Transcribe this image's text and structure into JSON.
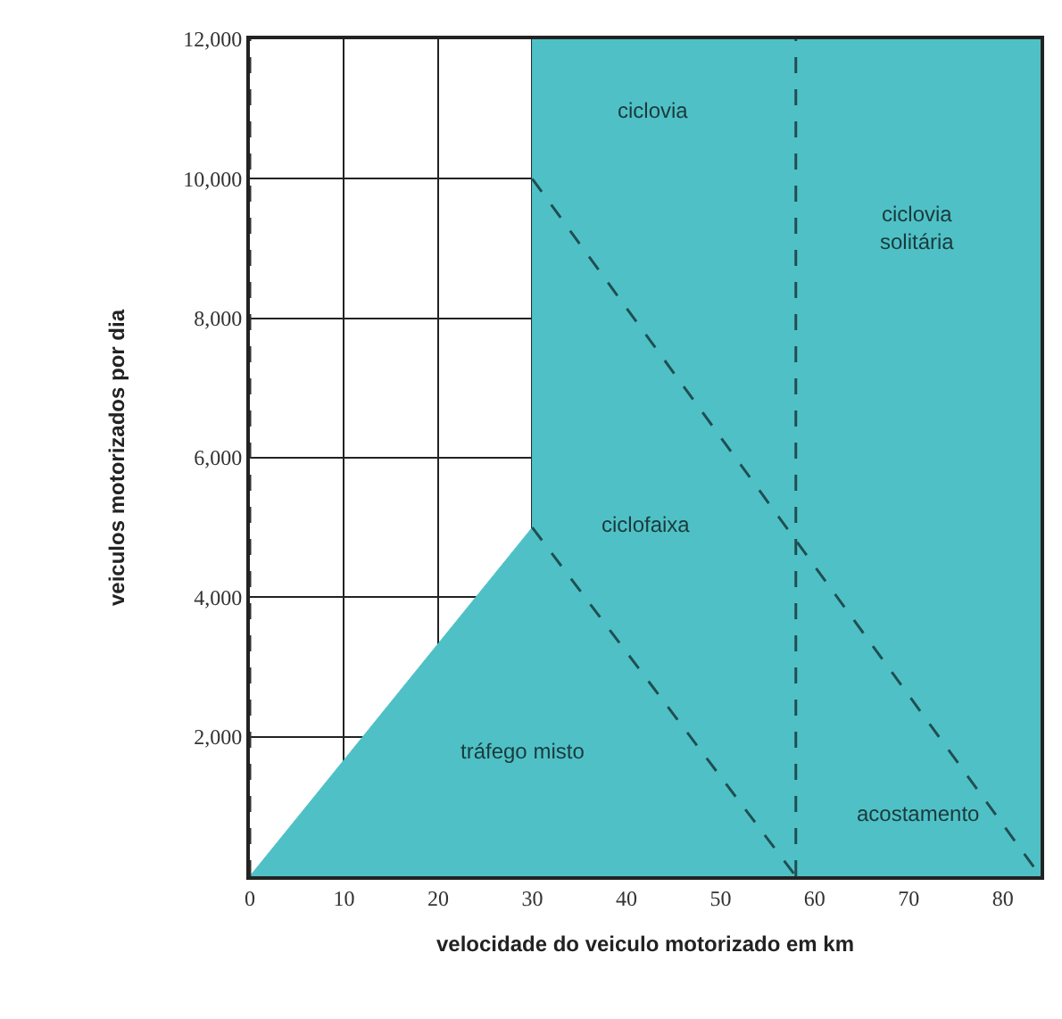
{
  "chart_data": {
    "type": "area",
    "xlabel": "velocidade do veiculo motorizado em km",
    "ylabel": "veiculos motorizados por dia",
    "xlim": [
      0,
      84
    ],
    "ylim": [
      0,
      12000
    ],
    "xticks": [
      0,
      10,
      20,
      30,
      40,
      50,
      60,
      70,
      80
    ],
    "yticks": [
      {
        "value": 2000,
        "label": "2,000"
      },
      {
        "value": 4000,
        "label": "4,000"
      },
      {
        "value": 6000,
        "label": "6,000"
      },
      {
        "value": 8000,
        "label": "8,000"
      },
      {
        "value": 10000,
        "label": "10,000"
      },
      {
        "value": 12000,
        "label": "12,000"
      }
    ],
    "grid": true,
    "series": [
      {
        "color": "#4fc1c6",
        "x": [
          0,
          30,
          30,
          84
        ],
        "values": [
          0,
          5000,
          12000,
          12000
        ]
      },
      {
        "type": "line",
        "color": "#1f4f52",
        "line_style": "dashed",
        "x": [
          30,
          58
        ],
        "values": [
          5000,
          0
        ]
      },
      {
        "type": "line",
        "color": "#1f4f52",
        "line_style": "dashed",
        "x": [
          30,
          84
        ],
        "values": [
          10000,
          0
        ]
      }
    ],
    "ref_lines": [
      {
        "axis": "x",
        "value": 58,
        "color": "#1f4f52",
        "line_style": "dashed"
      },
      {
        "axis": "x",
        "value": 0,
        "color": "#333333",
        "line_style": "dashed"
      }
    ],
    "annotations": [
      "ciclovia",
      "ciclovia\nsolitária",
      "ciclofaixa",
      "tráfego misto",
      "acostamento"
    ]
  }
}
